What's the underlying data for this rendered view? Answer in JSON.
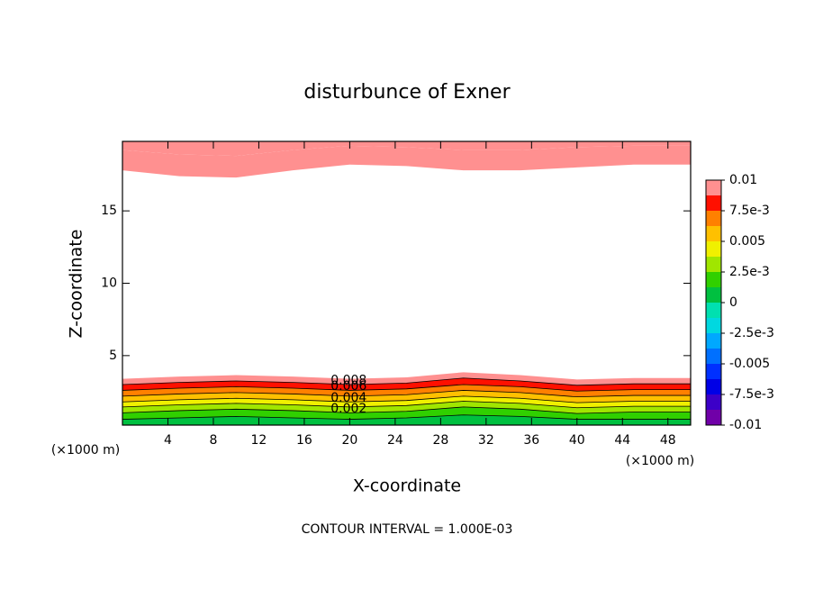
{
  "chart_data": {
    "type": "contour",
    "title": "disturbunce of Exner",
    "x_label": "X-coordinate",
    "y_label": "Z-coordinate",
    "x_unit_left": "(×1000 m)",
    "x_unit_right": "(×1000 m)",
    "footer": "CONTOUR INTERVAL = 1.000E-03",
    "xlim": [
      0,
      50
    ],
    "ylim": [
      0.2,
      19.8
    ],
    "xticks": [
      4,
      8,
      12,
      16,
      20,
      24,
      28,
      32,
      36,
      40,
      44,
      48
    ],
    "yticks": [
      5,
      10,
      15
    ],
    "x": [
      0,
      5,
      10,
      15,
      20,
      25,
      30,
      35,
      40,
      45,
      50
    ],
    "bands": [
      {
        "level": 0.0005,
        "lower": [
          0.2,
          0.2,
          0.2,
          0.2,
          0.2,
          0.2,
          0.2,
          0.2,
          0.2,
          0.2,
          0.2
        ],
        "upper": [
          0.6,
          0.7,
          0.8,
          0.7,
          0.6,
          0.7,
          0.9,
          0.8,
          0.6,
          0.6,
          0.6
        ]
      },
      {
        "level": 0.0015,
        "lower": [
          0.6,
          0.7,
          0.8,
          0.7,
          0.6,
          0.7,
          0.9,
          0.8,
          0.6,
          0.6,
          0.6
        ],
        "upper": [
          1.05,
          1.2,
          1.3,
          1.2,
          1.05,
          1.15,
          1.45,
          1.3,
          1.0,
          1.1,
          1.1
        ]
      },
      {
        "level": 0.0028,
        "lower": [
          1.05,
          1.2,
          1.3,
          1.2,
          1.05,
          1.15,
          1.45,
          1.3,
          1.0,
          1.1,
          1.1
        ],
        "upper": [
          1.45,
          1.6,
          1.7,
          1.6,
          1.45,
          1.55,
          1.85,
          1.7,
          1.4,
          1.5,
          1.5
        ]
      },
      {
        "level": 0.0042,
        "lower": [
          1.45,
          1.6,
          1.7,
          1.6,
          1.45,
          1.55,
          1.85,
          1.7,
          1.4,
          1.5,
          1.5
        ],
        "upper": [
          1.8,
          1.95,
          2.05,
          1.95,
          1.8,
          1.9,
          2.2,
          2.05,
          1.75,
          1.85,
          1.85
        ]
      },
      {
        "level": 0.0055,
        "lower": [
          1.8,
          1.95,
          2.05,
          1.95,
          1.8,
          1.9,
          2.2,
          2.05,
          1.75,
          1.85,
          1.85
        ],
        "upper": [
          2.2,
          2.35,
          2.45,
          2.35,
          2.2,
          2.3,
          2.6,
          2.45,
          2.15,
          2.25,
          2.25
        ]
      },
      {
        "level": 0.0068,
        "lower": [
          2.2,
          2.35,
          2.45,
          2.35,
          2.2,
          2.3,
          2.6,
          2.45,
          2.15,
          2.25,
          2.25
        ],
        "upper": [
          2.6,
          2.75,
          2.85,
          2.75,
          2.6,
          2.7,
          3.0,
          2.85,
          2.55,
          2.65,
          2.65
        ]
      },
      {
        "level": 0.008,
        "lower": [
          2.6,
          2.75,
          2.85,
          2.75,
          2.6,
          2.7,
          3.0,
          2.85,
          2.55,
          2.65,
          2.65
        ],
        "upper": [
          3.0,
          3.15,
          3.25,
          3.15,
          3.0,
          3.1,
          3.45,
          3.25,
          2.95,
          3.05,
          3.05
        ]
      },
      {
        "level": 0.0093,
        "lower": [
          3.0,
          3.15,
          3.25,
          3.15,
          3.0,
          3.1,
          3.45,
          3.25,
          2.95,
          3.05,
          3.05
        ],
        "upper": [
          3.4,
          3.55,
          3.65,
          3.55,
          3.4,
          3.5,
          3.85,
          3.65,
          3.35,
          3.45,
          3.45
        ]
      },
      {
        "level": 0.0093,
        "lower": [
          17.8,
          17.4,
          17.3,
          17.8,
          18.2,
          18.1,
          17.8,
          17.8,
          18.0,
          18.2,
          18.2
        ],
        "upper": [
          19.2,
          18.9,
          18.8,
          19.2,
          19.5,
          19.4,
          19.2,
          19.2,
          19.4,
          19.5,
          19.5
        ]
      },
      {
        "level": 0.0098,
        "lower": [
          19.2,
          18.9,
          18.8,
          19.2,
          19.5,
          19.4,
          19.2,
          19.2,
          19.4,
          19.5,
          19.5
        ],
        "upper": [
          19.8,
          19.8,
          19.8,
          19.8,
          19.8,
          19.8,
          19.8,
          19.8,
          19.8,
          19.8,
          19.8
        ]
      }
    ],
    "contour_labels": [
      0.008,
      0.006,
      0.004,
      0.002
    ],
    "contour_label_bands": [
      6,
      5,
      3,
      1
    ],
    "colorbar_lim": [
      -0.01,
      0.01
    ],
    "colormap": [
      "#7000a8",
      "#3c00c8",
      "#0000e6",
      "#0030ff",
      "#0070ff",
      "#00a8ff",
      "#00d8e0",
      "#00e0b0",
      "#00c040",
      "#30d000",
      "#a0e600",
      "#f0f000",
      "#ffc000",
      "#ff8000",
      "#ff1000",
      "#ff9090"
    ],
    "colorbar_ticks": [
      -0.01,
      {
        "value": -0.0075,
        "label": "-7.5e-3"
      },
      -0.005,
      {
        "value": -0.0025,
        "label": "-2.5e-3"
      },
      0,
      {
        "value": 0.0025,
        "label": "2.5e-3"
      },
      0.005,
      {
        "value": 0.0075,
        "label": "7.5e-3"
      },
      0.01
    ]
  }
}
